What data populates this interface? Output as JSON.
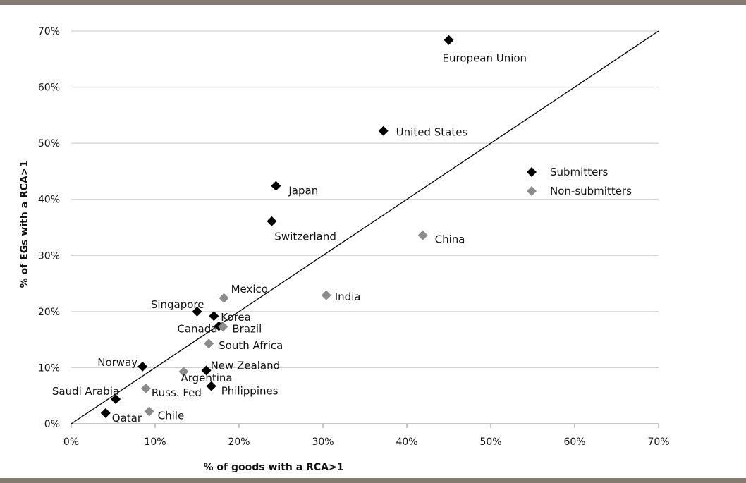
{
  "chart_data": {
    "type": "scatter",
    "title": "",
    "xlabel": "% of goods with a RCA>1",
    "ylabel": "% of EGs with a RCA>1",
    "xlim": [
      0,
      70
    ],
    "ylim": [
      0,
      70
    ],
    "x_ticks": [
      0,
      10,
      20,
      30,
      40,
      50,
      60,
      70
    ],
    "y_ticks": [
      0,
      10,
      20,
      30,
      40,
      50,
      60,
      70
    ],
    "x_tick_labels": [
      "0%",
      "10%",
      "20%",
      "30%",
      "40%",
      "50%",
      "60%",
      "70%"
    ],
    "y_tick_labels": [
      "0%",
      "10%",
      "20%",
      "30%",
      "40%",
      "50%",
      "60%",
      "70%"
    ],
    "grid": "horizontal",
    "legend_position": "right",
    "reference_line": {
      "from": [
        0,
        0
      ],
      "to": [
        70,
        70
      ]
    },
    "series": [
      {
        "name": "Submitters",
        "color": "#000000",
        "points": [
          {
            "label": "European Union",
            "x": 45,
            "y": 68.4
          },
          {
            "label": "United States",
            "x": 37.2,
            "y": 52.2
          },
          {
            "label": "Japan",
            "x": 24.4,
            "y": 42.4
          },
          {
            "label": "Switzerland",
            "x": 23.9,
            "y": 36.1
          },
          {
            "label": "Singapore",
            "x": 15,
            "y": 20
          },
          {
            "label": "Korea",
            "x": 17,
            "y": 19.2
          },
          {
            "label": "Canada",
            "x": 17.6,
            "y": 17.4
          },
          {
            "label": "Norway",
            "x": 8.5,
            "y": 10.2
          },
          {
            "label": "New Zealand",
            "x": 16.1,
            "y": 9.5
          },
          {
            "label": "Philippines",
            "x": 16.7,
            "y": 6.7
          },
          {
            "label": "Saudi Arabia",
            "x": 5.3,
            "y": 4.4
          },
          {
            "label": "Qatar",
            "x": 4.1,
            "y": 1.9
          }
        ]
      },
      {
        "name": "Non-submitters",
        "color": "#8c8c8c",
        "points": [
          {
            "label": "China",
            "x": 41.9,
            "y": 33.6
          },
          {
            "label": "India",
            "x": 30.4,
            "y": 22.9
          },
          {
            "label": "Mexico",
            "x": 18.2,
            "y": 22.4
          },
          {
            "label": "Brazil",
            "x": 18.1,
            "y": 17.3
          },
          {
            "label": "South Africa",
            "x": 16.4,
            "y": 14.3
          },
          {
            "label": "Argentina",
            "x": 13.4,
            "y": 9.3
          },
          {
            "label": "Russ. Fed",
            "x": 8.9,
            "y": 6.3
          },
          {
            "label": "Chile",
            "x": 9.3,
            "y": 2.2
          }
        ]
      }
    ]
  }
}
